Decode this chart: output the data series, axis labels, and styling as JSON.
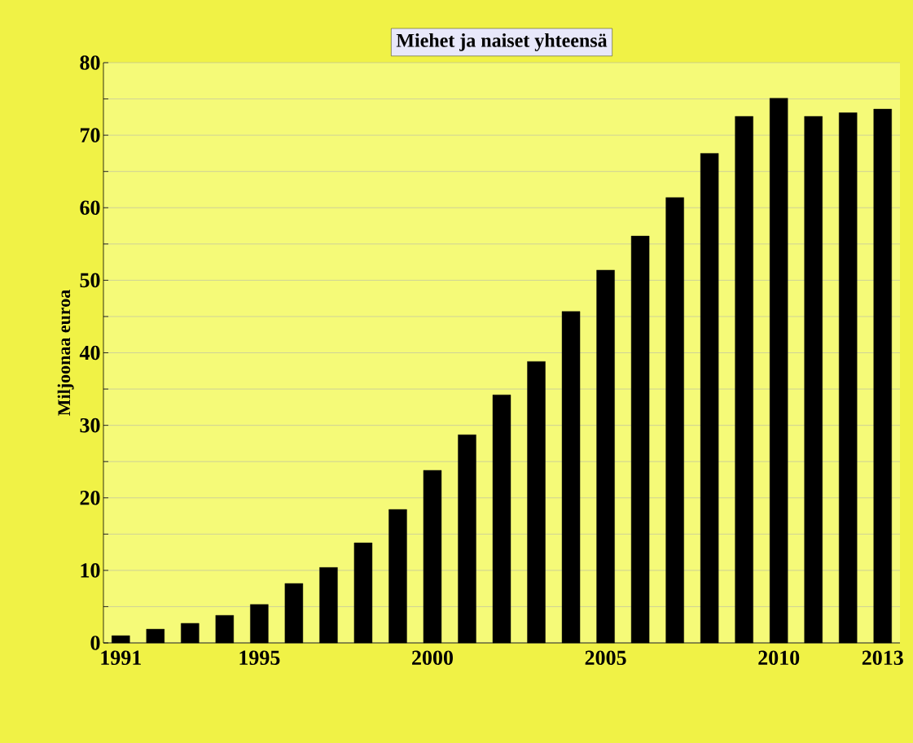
{
  "chart_data": {
    "type": "bar",
    "title": "Miehet ja naiset yhteensä",
    "ylabel": "Miljoonaa euroa",
    "categories": [
      "1991",
      null,
      null,
      null,
      "1995",
      null,
      null,
      null,
      null,
      "2000",
      null,
      null,
      null,
      null,
      "2005",
      null,
      null,
      null,
      null,
      "2010",
      null,
      null,
      "2013"
    ],
    "values": [
      1.0,
      1.9,
      2.7,
      3.8,
      5.3,
      8.2,
      10.4,
      13.8,
      18.4,
      23.8,
      28.7,
      34.2,
      38.8,
      45.7,
      51.4,
      56.1,
      61.4,
      67.5,
      72.6,
      75.1,
      72.6,
      73.1,
      73.6
    ],
    "color": "#000000",
    "ylim": [
      0,
      80
    ],
    "yticks": [
      0,
      {
        "value": 5,
        "label": null
      },
      10,
      {
        "value": 15,
        "label": null
      },
      20,
      {
        "value": 25,
        "label": null
      },
      30,
      {
        "value": 35,
        "label": null
      },
      40,
      {
        "value": 45,
        "label": null
      },
      50,
      {
        "value": 55,
        "label": null
      },
      60,
      {
        "value": 65,
        "label": null
      },
      70,
      {
        "value": 75,
        "label": null
      },
      80
    ],
    "grid": "y"
  }
}
